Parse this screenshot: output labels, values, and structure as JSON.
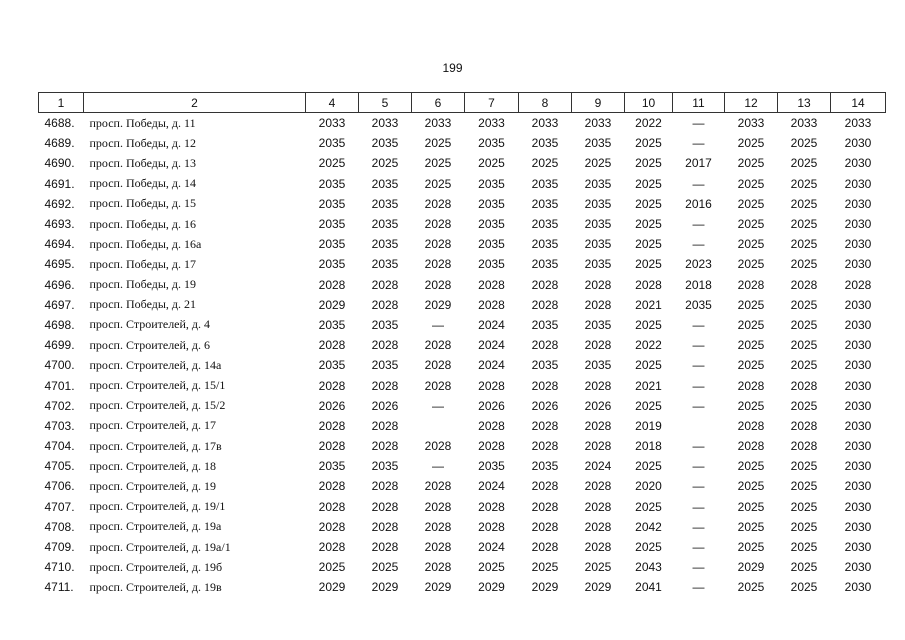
{
  "page_number": "199",
  "table": {
    "header": [
      "1",
      "2",
      "4",
      "5",
      "6",
      "7",
      "8",
      "9",
      "10",
      "11",
      "12",
      "13",
      "14"
    ],
    "rows": [
      [
        "4688.",
        "просп. Победы, д. 11",
        "2033",
        "2033",
        "2033",
        "2033",
        "2033",
        "2033",
        "2022",
        "—",
        "2033",
        "2033",
        "2033"
      ],
      [
        "4689.",
        "просп. Победы, д. 12",
        "2035",
        "2035",
        "2025",
        "2035",
        "2035",
        "2035",
        "2025",
        "—",
        "2025",
        "2025",
        "2030"
      ],
      [
        "4690.",
        "просп. Победы, д. 13",
        "2025",
        "2025",
        "2025",
        "2025",
        "2025",
        "2025",
        "2025",
        "2017",
        "2025",
        "2025",
        "2030"
      ],
      [
        "4691.",
        "просп. Победы, д. 14",
        "2035",
        "2035",
        "2025",
        "2035",
        "2035",
        "2035",
        "2025",
        "—",
        "2025",
        "2025",
        "2030"
      ],
      [
        "4692.",
        "просп. Победы, д. 15",
        "2035",
        "2035",
        "2028",
        "2035",
        "2035",
        "2035",
        "2025",
        "2016",
        "2025",
        "2025",
        "2030"
      ],
      [
        "4693.",
        "просп. Победы, д. 16",
        "2035",
        "2035",
        "2028",
        "2035",
        "2035",
        "2035",
        "2025",
        "—",
        "2025",
        "2025",
        "2030"
      ],
      [
        "4694.",
        "просп. Победы, д. 16а",
        "2035",
        "2035",
        "2028",
        "2035",
        "2035",
        "2035",
        "2025",
        "—",
        "2025",
        "2025",
        "2030"
      ],
      [
        "4695.",
        "просп. Победы, д. 17",
        "2035",
        "2035",
        "2028",
        "2035",
        "2035",
        "2035",
        "2025",
        "2023",
        "2025",
        "2025",
        "2030"
      ],
      [
        "4696.",
        "просп. Победы, д. 19",
        "2028",
        "2028",
        "2028",
        "2028",
        "2028",
        "2028",
        "2028",
        "2018",
        "2028",
        "2028",
        "2028"
      ],
      [
        "4697.",
        "просп. Победы, д. 21",
        "2029",
        "2028",
        "2029",
        "2028",
        "2028",
        "2028",
        "2021",
        "2035",
        "2025",
        "2025",
        "2030"
      ],
      [
        "4698.",
        "просп. Строителей, д. 4",
        "2035",
        "2035",
        "—",
        "2024",
        "2035",
        "2035",
        "2025",
        "—",
        "2025",
        "2025",
        "2030"
      ],
      [
        "4699.",
        "просп. Строителей, д. 6",
        "2028",
        "2028",
        "2028",
        "2024",
        "2028",
        "2028",
        "2022",
        "—",
        "2025",
        "2025",
        "2030"
      ],
      [
        "4700.",
        "просп. Строителей, д. 14а",
        "2035",
        "2035",
        "2028",
        "2024",
        "2035",
        "2035",
        "2025",
        "—",
        "2025",
        "2025",
        "2030"
      ],
      [
        "4701.",
        "просп. Строителей, д. 15/1",
        "2028",
        "2028",
        "2028",
        "2028",
        "2028",
        "2028",
        "2021",
        "—",
        "2028",
        "2028",
        "2030"
      ],
      [
        "4702.",
        "просп. Строителей, д. 15/2",
        "2026",
        "2026",
        "—",
        "2026",
        "2026",
        "2026",
        "2025",
        "—",
        "2025",
        "2025",
        "2030"
      ],
      [
        "4703.",
        "просп. Строителей, д. 17",
        "2028",
        "2028",
        null,
        "2028",
        "2028",
        "2028",
        "2019",
        null,
        "2028",
        "2028",
        "2030"
      ],
      [
        "4704.",
        "просп. Строителей, д. 17в",
        "2028",
        "2028",
        "2028",
        "2028",
        "2028",
        "2028",
        "2018",
        "—",
        "2028",
        "2028",
        "2030"
      ],
      [
        "4705.",
        "просп. Строителей, д. 18",
        "2035",
        "2035",
        "—",
        "2035",
        "2035",
        "2024",
        "2025",
        "—",
        "2025",
        "2025",
        "2030"
      ],
      [
        "4706.",
        "просп. Строителей, д. 19",
        "2028",
        "2028",
        "2028",
        "2024",
        "2028",
        "2028",
        "2020",
        "—",
        "2025",
        "2025",
        "2030"
      ],
      [
        "4707.",
        "просп. Строителей, д. 19/1",
        "2028",
        "2028",
        "2028",
        "2028",
        "2028",
        "2028",
        "2025",
        "—",
        "2025",
        "2025",
        "2030"
      ],
      [
        "4708.",
        "просп. Строителей, д. 19а",
        "2028",
        "2028",
        "2028",
        "2028",
        "2028",
        "2028",
        "2042",
        "—",
        "2025",
        "2025",
        "2030"
      ],
      [
        "4709.",
        "просп. Строителей, д. 19а/1",
        "2028",
        "2028",
        "2028",
        "2024",
        "2028",
        "2028",
        "2025",
        "—",
        "2025",
        "2025",
        "2030"
      ],
      [
        "4710.",
        "просп. Строителей, д. 19б",
        "2025",
        "2025",
        "2028",
        "2025",
        "2025",
        "2025",
        "2043",
        "—",
        "2029",
        "2025",
        "2030"
      ],
      [
        "4711.",
        "просп. Строителей, д. 19в",
        "2029",
        "2029",
        "2029",
        "2029",
        "2029",
        "2029",
        "2041",
        "—",
        "2025",
        "2025",
        "2030"
      ]
    ]
  }
}
